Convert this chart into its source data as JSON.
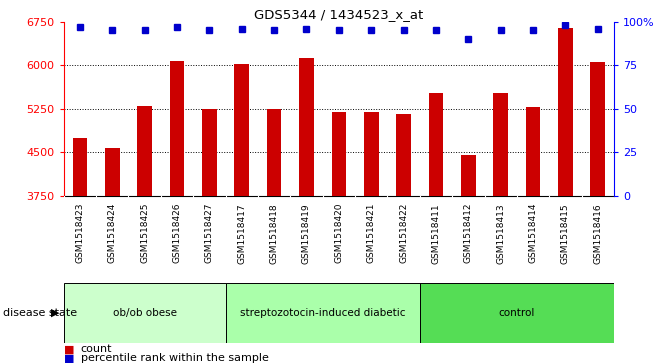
{
  "title": "GDS5344 / 1434523_x_at",
  "samples": [
    "GSM1518423",
    "GSM1518424",
    "GSM1518425",
    "GSM1518426",
    "GSM1518427",
    "GSM1518417",
    "GSM1518418",
    "GSM1518419",
    "GSM1518420",
    "GSM1518421",
    "GSM1518422",
    "GSM1518411",
    "GSM1518412",
    "GSM1518413",
    "GSM1518414",
    "GSM1518415",
    "GSM1518416"
  ],
  "counts": [
    4750,
    4580,
    5300,
    6080,
    5250,
    6030,
    5250,
    6120,
    5200,
    5200,
    5170,
    5530,
    4460,
    5530,
    5280,
    6650,
    6060
  ],
  "percentile_ranks": [
    97,
    95,
    95,
    97,
    95,
    96,
    95,
    96,
    95,
    95,
    95,
    95,
    90,
    95,
    95,
    98,
    96
  ],
  "groups": [
    {
      "label": "ob/ob obese",
      "start": 0,
      "end": 5,
      "color": "#ccffcc"
    },
    {
      "label": "streptozotocin-induced diabetic",
      "start": 5,
      "end": 11,
      "color": "#aaffaa"
    },
    {
      "label": "control",
      "start": 11,
      "end": 17,
      "color": "#55dd55"
    }
  ],
  "bar_color": "#cc0000",
  "dot_color": "#0000cc",
  "ylim_left": [
    3750,
    6750
  ],
  "ylim_right": [
    0,
    100
  ],
  "yticks_left": [
    3750,
    4500,
    5250,
    6000,
    6750
  ],
  "yticks_right": [
    0,
    25,
    50,
    75,
    100
  ],
  "ytick_labels_right": [
    "0",
    "25",
    "50",
    "75",
    "100%"
  ],
  "grid_values": [
    4500,
    5250,
    6000
  ],
  "sample_bg_color": "#d8d8d8",
  "plot_bg": "#ffffff"
}
